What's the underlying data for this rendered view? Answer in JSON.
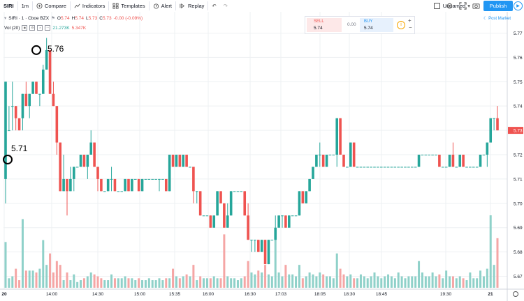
{
  "toolbar": {
    "symbol": "SIRI",
    "interval": "1m",
    "compare": "Compare",
    "indicators": "Indicators",
    "templates": "Templates",
    "alert": "Alert",
    "replay": "Replay",
    "layout_name": "Unnamed",
    "publish": "Publish"
  },
  "legend": {
    "title": "SIRI · 1 · Cboe BZX",
    "ohlc": [
      {
        "k": "O",
        "v": "5.74"
      },
      {
        "k": "H",
        "v": "5.74"
      },
      {
        "k": "L",
        "v": "5.73"
      },
      {
        "k": "C",
        "v": "5.73"
      }
    ],
    "change": "-0.00 (-0.09%)",
    "vol_label": "Vol (20)",
    "vol_value_1": "21.273K",
    "vol_value_2": "5.347K"
  },
  "trade_panel": {
    "sell_label": "SELL",
    "sell_price": "5.74",
    "spread": "0.00",
    "buy_label": "BUY",
    "buy_price": "5.74"
  },
  "session_badge": "Post Market",
  "annotations": [
    {
      "label": "5.76",
      "time": "13:54",
      "price": 5.763
    },
    {
      "label": "5.71",
      "time": "13:33",
      "price": 5.718
    }
  ],
  "last_price_label": "5.73",
  "colors": {
    "up": "#26a69a",
    "down": "#ef5350",
    "vol_up": "#8fd1c9",
    "vol_down": "#f5a6a5",
    "accent": "#2196f3"
  },
  "chart_data": {
    "type": "candlestick",
    "title": "SIRI · 1 · Cboe BZX",
    "timeframe": "1m",
    "price_axis": {
      "ticks": [
        "5.77",
        "5.76",
        "5.75",
        "5.74",
        "5.73",
        "5.72",
        "5.71",
        "5.70",
        "5.69",
        "5.68",
        "5.67"
      ],
      "ylim": [
        5.665,
        5.775
      ]
    },
    "time_axis": {
      "ticks": [
        "20",
        "14:00",
        "14:30",
        "15:00",
        "15:35",
        "16:00",
        "16:30",
        "17:03",
        "18:05",
        "18:30",
        "18:45",
        "19:30",
        "21"
      ]
    },
    "grid": true,
    "candles": [
      {
        "o": 5.71,
        "h": 5.75,
        "l": 5.7,
        "c": 5.75,
        "v": 24
      },
      {
        "o": 5.73,
        "h": 5.74,
        "l": 5.73,
        "c": 5.73,
        "v": 5
      },
      {
        "o": 5.74,
        "h": 5.75,
        "l": 5.73,
        "c": 5.74,
        "v": 6
      },
      {
        "o": 5.74,
        "h": 5.74,
        "l": 5.73,
        "c": 5.735,
        "v": 10
      },
      {
        "o": 5.735,
        "h": 5.735,
        "l": 5.73,
        "c": 5.73,
        "v": 4
      },
      {
        "o": 5.735,
        "h": 5.745,
        "l": 5.73,
        "c": 5.745,
        "v": 36
      },
      {
        "o": 5.745,
        "h": 5.75,
        "l": 5.74,
        "c": 5.74,
        "v": 9
      },
      {
        "o": 5.74,
        "h": 5.745,
        "l": 5.735,
        "c": 5.745,
        "v": 9
      },
      {
        "o": 5.745,
        "h": 5.75,
        "l": 5.745,
        "c": 5.75,
        "v": 9
      },
      {
        "o": 5.75,
        "h": 5.75,
        "l": 5.745,
        "c": 5.745,
        "v": 8
      },
      {
        "o": 5.745,
        "h": 5.745,
        "l": 5.74,
        "c": 5.745,
        "v": 10
      },
      {
        "o": 5.745,
        "h": 5.757,
        "l": 5.745,
        "c": 5.755,
        "v": 25
      },
      {
        "o": 5.755,
        "h": 5.768,
        "l": 5.755,
        "c": 5.763,
        "v": 12
      },
      {
        "o": 5.763,
        "h": 5.763,
        "l": 5.745,
        "c": 5.745,
        "v": 18
      },
      {
        "o": 5.745,
        "h": 5.75,
        "l": 5.74,
        "c": 5.74,
        "v": 8
      },
      {
        "o": 5.74,
        "h": 5.74,
        "l": 5.72,
        "c": 5.725,
        "v": 14
      },
      {
        "o": 5.725,
        "h": 5.725,
        "l": 5.705,
        "c": 5.705,
        "v": 12
      },
      {
        "o": 5.705,
        "h": 5.72,
        "l": 5.705,
        "c": 5.71,
        "v": 4
      },
      {
        "o": 5.71,
        "h": 5.71,
        "l": 5.695,
        "c": 5.705,
        "v": 8
      },
      {
        "o": 5.705,
        "h": 5.715,
        "l": 5.705,
        "c": 5.71,
        "v": 4
      },
      {
        "o": 5.71,
        "h": 5.715,
        "l": 5.705,
        "c": 5.715,
        "v": 7
      },
      {
        "o": 5.715,
        "h": 5.715,
        "l": 5.715,
        "c": 5.715,
        "v": 3
      },
      {
        "o": 5.715,
        "h": 5.72,
        "l": 5.715,
        "c": 5.72,
        "v": 4
      },
      {
        "o": 5.72,
        "h": 5.72,
        "l": 5.715,
        "c": 5.715,
        "v": 5
      },
      {
        "o": 5.715,
        "h": 5.72,
        "l": 5.71,
        "c": 5.72,
        "v": 6
      },
      {
        "o": 5.72,
        "h": 5.73,
        "l": 5.72,
        "c": 5.725,
        "v": 8
      },
      {
        "o": 5.725,
        "h": 5.725,
        "l": 5.715,
        "c": 5.715,
        "v": 7
      },
      {
        "o": 5.715,
        "h": 5.715,
        "l": 5.705,
        "c": 5.71,
        "v": 6
      },
      {
        "o": 5.71,
        "h": 5.71,
        "l": 5.705,
        "c": 5.705,
        "v": 5
      },
      {
        "o": 5.705,
        "h": 5.705,
        "l": 5.705,
        "c": 5.705,
        "v": 4
      },
      {
        "o": 5.705,
        "h": 5.71,
        "l": 5.705,
        "c": 5.71,
        "v": 4
      },
      {
        "o": 5.71,
        "h": 5.715,
        "l": 5.705,
        "c": 5.71,
        "v": 7
      },
      {
        "o": 5.71,
        "h": 5.71,
        "l": 5.705,
        "c": 5.705,
        "v": 5
      },
      {
        "o": 5.705,
        "h": 5.705,
        "l": 5.705,
        "c": 5.705,
        "v": 5
      },
      {
        "o": 5.705,
        "h": 5.705,
        "l": 5.705,
        "c": 5.705,
        "v": 5
      },
      {
        "o": 5.705,
        "h": 5.71,
        "l": 5.705,
        "c": 5.71,
        "v": 6
      },
      {
        "o": 5.71,
        "h": 5.71,
        "l": 5.705,
        "c": 5.705,
        "v": 5
      },
      {
        "o": 5.705,
        "h": 5.71,
        "l": 5.705,
        "c": 5.71,
        "v": 5
      },
      {
        "o": 5.71,
        "h": 5.71,
        "l": 5.71,
        "c": 5.71,
        "v": 4
      },
      {
        "o": 5.71,
        "h": 5.71,
        "l": 5.705,
        "c": 5.705,
        "v": 5
      },
      {
        "o": 5.705,
        "h": 5.71,
        "l": 5.705,
        "c": 5.71,
        "v": 4
      },
      {
        "o": 5.71,
        "h": 5.71,
        "l": 5.71,
        "c": 5.71,
        "v": 4
      },
      {
        "o": 5.71,
        "h": 5.71,
        "l": 5.71,
        "c": 5.71,
        "v": 5
      },
      {
        "o": 5.71,
        "h": 5.71,
        "l": 5.71,
        "c": 5.71,
        "v": 4
      },
      {
        "o": 5.71,
        "h": 5.71,
        "l": 5.71,
        "c": 5.71,
        "v": 4
      },
      {
        "o": 5.71,
        "h": 5.71,
        "l": 5.705,
        "c": 5.71,
        "v": 5
      },
      {
        "o": 5.71,
        "h": 5.71,
        "l": 5.71,
        "c": 5.71,
        "v": 4
      },
      {
        "o": 5.71,
        "h": 5.71,
        "l": 5.705,
        "c": 5.705,
        "v": 5
      },
      {
        "o": 5.705,
        "h": 5.72,
        "l": 5.705,
        "c": 5.72,
        "v": 5
      },
      {
        "o": 5.72,
        "h": 5.72,
        "l": 5.715,
        "c": 5.715,
        "v": 10
      },
      {
        "o": 5.715,
        "h": 5.72,
        "l": 5.715,
        "c": 5.72,
        "v": 6
      },
      {
        "o": 5.72,
        "h": 5.72,
        "l": 5.715,
        "c": 5.715,
        "v": 5
      },
      {
        "o": 5.715,
        "h": 5.72,
        "l": 5.715,
        "c": 5.72,
        "v": 6
      },
      {
        "o": 5.72,
        "h": 5.72,
        "l": 5.715,
        "c": 5.715,
        "v": 7
      },
      {
        "o": 5.715,
        "h": 5.715,
        "l": 5.715,
        "c": 5.715,
        "v": 6
      },
      {
        "o": 5.715,
        "h": 5.715,
        "l": 5.7,
        "c": 5.705,
        "v": 12
      },
      {
        "o": 5.705,
        "h": 5.705,
        "l": 5.7,
        "c": 5.705,
        "v": 4
      },
      {
        "o": 5.705,
        "h": 5.705,
        "l": 5.695,
        "c": 5.695,
        "v": 6
      },
      {
        "o": 5.695,
        "h": 5.695,
        "l": 5.695,
        "c": 5.695,
        "v": 5
      },
      {
        "o": 5.695,
        "h": 5.695,
        "l": 5.695,
        "c": 5.695,
        "v": 5
      },
      {
        "o": 5.695,
        "h": 5.695,
        "l": 5.69,
        "c": 5.69,
        "v": 5
      },
      {
        "o": 5.69,
        "h": 5.695,
        "l": 5.69,
        "c": 5.695,
        "v": 6
      },
      {
        "o": 5.695,
        "h": 5.705,
        "l": 5.695,
        "c": 5.705,
        "v": 5
      },
      {
        "o": 5.705,
        "h": 5.705,
        "l": 5.7,
        "c": 5.7,
        "v": 5
      },
      {
        "o": 5.7,
        "h": 5.7,
        "l": 5.69,
        "c": 5.69,
        "v": 28
      },
      {
        "o": 5.69,
        "h": 5.7,
        "l": 5.69,
        "c": 5.695,
        "v": 6
      },
      {
        "o": 5.695,
        "h": 5.705,
        "l": 5.695,
        "c": 5.705,
        "v": 5
      },
      {
        "o": 5.705,
        "h": 5.705,
        "l": 5.705,
        "c": 5.705,
        "v": 5
      },
      {
        "o": 5.705,
        "h": 5.705,
        "l": 5.705,
        "c": 5.705,
        "v": 4
      },
      {
        "o": 5.705,
        "h": 5.705,
        "l": 5.705,
        "c": 5.705,
        "v": 5
      },
      {
        "o": 5.705,
        "h": 5.705,
        "l": 5.695,
        "c": 5.695,
        "v": 6
      },
      {
        "o": 5.695,
        "h": 5.7,
        "l": 5.685,
        "c": 5.685,
        "v": 14
      },
      {
        "o": 5.685,
        "h": 5.685,
        "l": 5.68,
        "c": 5.685,
        "v": 8
      },
      {
        "o": 5.685,
        "h": 5.685,
        "l": 5.68,
        "c": 5.685,
        "v": 7
      },
      {
        "o": 5.685,
        "h": 5.685,
        "l": 5.68,
        "c": 5.68,
        "v": 9
      },
      {
        "o": 5.68,
        "h": 5.685,
        "l": 5.68,
        "c": 5.685,
        "v": 8
      },
      {
        "o": 5.685,
        "h": 5.685,
        "l": 5.675,
        "c": 5.675,
        "v": 12
      },
      {
        "o": 5.675,
        "h": 5.685,
        "l": 5.675,
        "c": 5.685,
        "v": 7
      },
      {
        "o": 5.685,
        "h": 5.685,
        "l": 5.685,
        "c": 5.685,
        "v": 6
      },
      {
        "o": 5.685,
        "h": 5.695,
        "l": 5.685,
        "c": 5.69,
        "v": 30
      },
      {
        "o": 5.69,
        "h": 5.695,
        "l": 5.69,
        "c": 5.695,
        "v": 8
      },
      {
        "o": 5.695,
        "h": 5.695,
        "l": 5.69,
        "c": 5.695,
        "v": 6
      },
      {
        "o": 5.695,
        "h": 5.695,
        "l": 5.69,
        "c": 5.69,
        "v": 12
      },
      {
        "o": 5.69,
        "h": 5.695,
        "l": 5.69,
        "c": 5.695,
        "v": 7
      },
      {
        "o": 5.695,
        "h": 5.695,
        "l": 5.695,
        "c": 5.695,
        "v": 7
      },
      {
        "o": 5.695,
        "h": 5.695,
        "l": 5.695,
        "c": 5.695,
        "v": 6
      },
      {
        "o": 5.695,
        "h": 5.705,
        "l": 5.695,
        "c": 5.705,
        "v": 12
      },
      {
        "o": 5.705,
        "h": 5.705,
        "l": 5.7,
        "c": 5.7,
        "v": 5
      },
      {
        "o": 5.7,
        "h": 5.705,
        "l": 5.7,
        "c": 5.705,
        "v": 6
      },
      {
        "o": 5.705,
        "h": 5.71,
        "l": 5.705,
        "c": 5.71,
        "v": 8
      },
      {
        "o": 5.71,
        "h": 5.715,
        "l": 5.71,
        "c": 5.715,
        "v": 7
      },
      {
        "o": 5.715,
        "h": 5.72,
        "l": 5.715,
        "c": 5.72,
        "v": 6
      },
      {
        "o": 5.72,
        "h": 5.725,
        "l": 5.715,
        "c": 5.72,
        "v": 8
      },
      {
        "o": 5.72,
        "h": 5.72,
        "l": 5.715,
        "c": 5.715,
        "v": 7
      },
      {
        "o": 5.715,
        "h": 5.72,
        "l": 5.715,
        "c": 5.72,
        "v": 6
      },
      {
        "o": 5.72,
        "h": 5.72,
        "l": 5.72,
        "c": 5.72,
        "v": 6
      },
      {
        "o": 5.72,
        "h": 5.72,
        "l": 5.72,
        "c": 5.72,
        "v": 5
      },
      {
        "o": 5.72,
        "h": 5.735,
        "l": 5.715,
        "c": 5.735,
        "v": 18
      },
      {
        "o": 5.735,
        "h": 5.735,
        "l": 5.72,
        "c": 5.72,
        "v": 10
      },
      {
        "o": 5.72,
        "h": 5.72,
        "l": 5.715,
        "c": 5.715,
        "v": 7
      },
      {
        "o": 5.715,
        "h": 5.715,
        "l": 5.715,
        "c": 5.715,
        "v": 6
      },
      {
        "o": 5.715,
        "h": 5.725,
        "l": 5.715,
        "c": 5.725,
        "v": 7
      },
      {
        "o": 5.725,
        "h": 5.725,
        "l": 5.715,
        "c": 5.715,
        "v": 5
      },
      {
        "o": 5.715,
        "h": 5.715,
        "l": 5.715,
        "c": 5.715,
        "v": 5
      },
      {
        "o": 5.715,
        "h": 5.715,
        "l": 5.715,
        "c": 5.715,
        "v": 7
      },
      {
        "o": 5.715,
        "h": 5.715,
        "l": 5.715,
        "c": 5.715,
        "v": 6
      },
      {
        "o": 5.715,
        "h": 5.715,
        "l": 5.715,
        "c": 5.715,
        "v": 5
      },
      {
        "o": 5.715,
        "h": 5.715,
        "l": 5.715,
        "c": 5.715,
        "v": 6
      },
      {
        "o": 5.715,
        "h": 5.715,
        "l": 5.715,
        "c": 5.715,
        "v": 8
      },
      {
        "o": 5.715,
        "h": 5.715,
        "l": 5.715,
        "c": 5.715,
        "v": 6
      },
      {
        "o": 5.715,
        "h": 5.715,
        "l": 5.715,
        "c": 5.715,
        "v": 5
      },
      {
        "o": 5.715,
        "h": 5.715,
        "l": 5.715,
        "c": 5.715,
        "v": 6
      },
      {
        "o": 5.715,
        "h": 5.715,
        "l": 5.715,
        "c": 5.715,
        "v": 7
      },
      {
        "o": 5.715,
        "h": 5.715,
        "l": 5.715,
        "c": 5.715,
        "v": 6
      },
      {
        "o": 5.715,
        "h": 5.715,
        "l": 5.715,
        "c": 5.715,
        "v": 5
      },
      {
        "o": 5.715,
        "h": 5.715,
        "l": 5.715,
        "c": 5.715,
        "v": 8
      },
      {
        "o": 5.715,
        "h": 5.715,
        "l": 5.715,
        "c": 5.715,
        "v": 6
      },
      {
        "o": 5.715,
        "h": 5.715,
        "l": 5.715,
        "c": 5.715,
        "v": 5
      },
      {
        "o": 5.715,
        "h": 5.715,
        "l": 5.715,
        "c": 5.715,
        "v": 6
      },
      {
        "o": 5.715,
        "h": 5.715,
        "l": 5.715,
        "c": 5.715,
        "v": 6
      },
      {
        "o": 5.715,
        "h": 5.715,
        "l": 5.715,
        "c": 5.715,
        "v": 6
      },
      {
        "o": 5.715,
        "h": 5.72,
        "l": 5.715,
        "c": 5.72,
        "v": 14
      },
      {
        "o": 5.72,
        "h": 5.72,
        "l": 5.72,
        "c": 5.72,
        "v": 8
      },
      {
        "o": 5.72,
        "h": 5.72,
        "l": 5.72,
        "c": 5.72,
        "v": 6
      },
      {
        "o": 5.72,
        "h": 5.72,
        "l": 5.72,
        "c": 5.72,
        "v": 6
      },
      {
        "o": 5.72,
        "h": 5.72,
        "l": 5.72,
        "c": 5.72,
        "v": 8
      },
      {
        "o": 5.72,
        "h": 5.72,
        "l": 5.72,
        "c": 5.72,
        "v": 6
      },
      {
        "o": 5.72,
        "h": 5.72,
        "l": 5.715,
        "c": 5.715,
        "v": 7
      },
      {
        "o": 5.715,
        "h": 5.715,
        "l": 5.715,
        "c": 5.715,
        "v": 5
      },
      {
        "o": 5.715,
        "h": 5.715,
        "l": 5.715,
        "c": 5.715,
        "v": 9
      },
      {
        "o": 5.715,
        "h": 5.72,
        "l": 5.715,
        "c": 5.72,
        "v": 6
      },
      {
        "o": 5.72,
        "h": 5.725,
        "l": 5.715,
        "c": 5.715,
        "v": 6
      },
      {
        "o": 5.715,
        "h": 5.715,
        "l": 5.715,
        "c": 5.715,
        "v": 5
      },
      {
        "o": 5.715,
        "h": 5.72,
        "l": 5.715,
        "c": 5.72,
        "v": 6
      },
      {
        "o": 5.72,
        "h": 5.72,
        "l": 5.715,
        "c": 5.715,
        "v": 5
      },
      {
        "o": 5.715,
        "h": 5.715,
        "l": 5.715,
        "c": 5.715,
        "v": 4
      },
      {
        "o": 5.715,
        "h": 5.715,
        "l": 5.715,
        "c": 5.715,
        "v": 8
      },
      {
        "o": 5.715,
        "h": 5.715,
        "l": 5.715,
        "c": 5.715,
        "v": 5
      },
      {
        "o": 5.715,
        "h": 5.715,
        "l": 5.715,
        "c": 5.715,
        "v": 5
      },
      {
        "o": 5.715,
        "h": 5.72,
        "l": 5.715,
        "c": 5.72,
        "v": 9
      },
      {
        "o": 5.72,
        "h": 5.72,
        "l": 5.72,
        "c": 5.72,
        "v": 6
      },
      {
        "o": 5.72,
        "h": 5.725,
        "l": 5.715,
        "c": 5.725,
        "v": 10
      },
      {
        "o": 5.725,
        "h": 5.735,
        "l": 5.725,
        "c": 5.735,
        "v": 38
      },
      {
        "o": 5.735,
        "h": 5.735,
        "l": 5.73,
        "c": 5.735,
        "v": 12
      },
      {
        "o": 5.735,
        "h": 5.74,
        "l": 5.73,
        "c": 5.73,
        "v": 26
      }
    ]
  }
}
